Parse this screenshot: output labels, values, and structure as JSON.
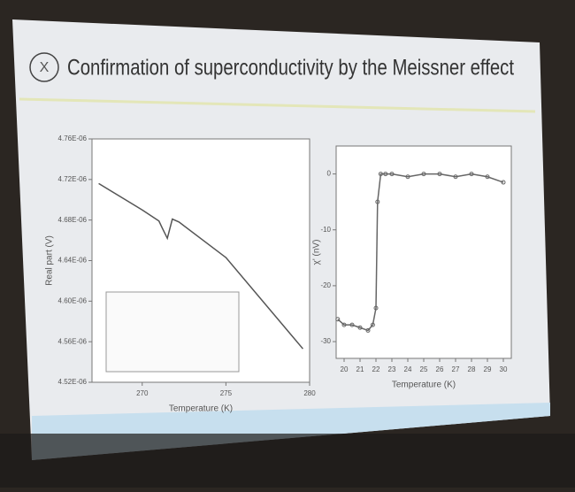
{
  "title": "Confirmation of superconductivity by the Meissner effect",
  "chart_data": [
    {
      "type": "line",
      "color": "#555555",
      "xlabel": "Temperature (K)",
      "ylabel": "Real part (V)",
      "x": [
        267.4,
        269,
        270,
        271,
        271.2,
        271.5,
        271.8,
        272.2,
        275,
        279.6
      ],
      "values": [
        4.716e-06,
        4.7e-06,
        4.69e-06,
        4.679e-06,
        4.672e-06,
        4.662e-06,
        4.681e-06,
        4.678e-06,
        4.643e-06,
        4.553e-06
      ],
      "xlim": [
        267,
        280
      ],
      "xticks": [
        270,
        275,
        280
      ],
      "ylim": [
        4.52e-06,
        4.76e-06
      ],
      "yticks": [
        {
          "value": 4.52e-06,
          "label": "4.52E-06"
        },
        {
          "value": 4.56e-06,
          "label": "4.56E-06"
        },
        {
          "value": 4.6e-06,
          "label": "4.60E-06"
        },
        {
          "value": 4.64e-06,
          "label": "4.64E-06"
        },
        {
          "value": 4.68e-06,
          "label": "4.68E-06"
        },
        {
          "value": 4.72e-06,
          "label": "4.72E-06"
        },
        {
          "value": 4.76e-06,
          "label": "4.76E-06"
        }
      ]
    },
    {
      "type": "line",
      "color": "#666666",
      "markers": true,
      "xlabel": "Temperature (K)",
      "ylabel": "χ' (nV)",
      "x": [
        19.6,
        20,
        20.5,
        21,
        21.5,
        21.8,
        22,
        22.1,
        22.3,
        22.6,
        23,
        24,
        25,
        26,
        27,
        28,
        29,
        30
      ],
      "values": [
        -26,
        -27,
        -27,
        -27.5,
        -28,
        -27,
        -24,
        -5,
        0,
        0,
        0,
        -0.5,
        0,
        0,
        -0.5,
        0,
        -0.5,
        -1.5
      ],
      "xlim": [
        19.5,
        30.5
      ],
      "xticks": [
        20,
        21,
        22,
        23,
        24,
        25,
        26,
        27,
        28,
        29,
        30
      ],
      "ylim": [
        -33,
        5
      ],
      "yticks": [
        -30,
        -20,
        -10,
        0
      ]
    }
  ]
}
